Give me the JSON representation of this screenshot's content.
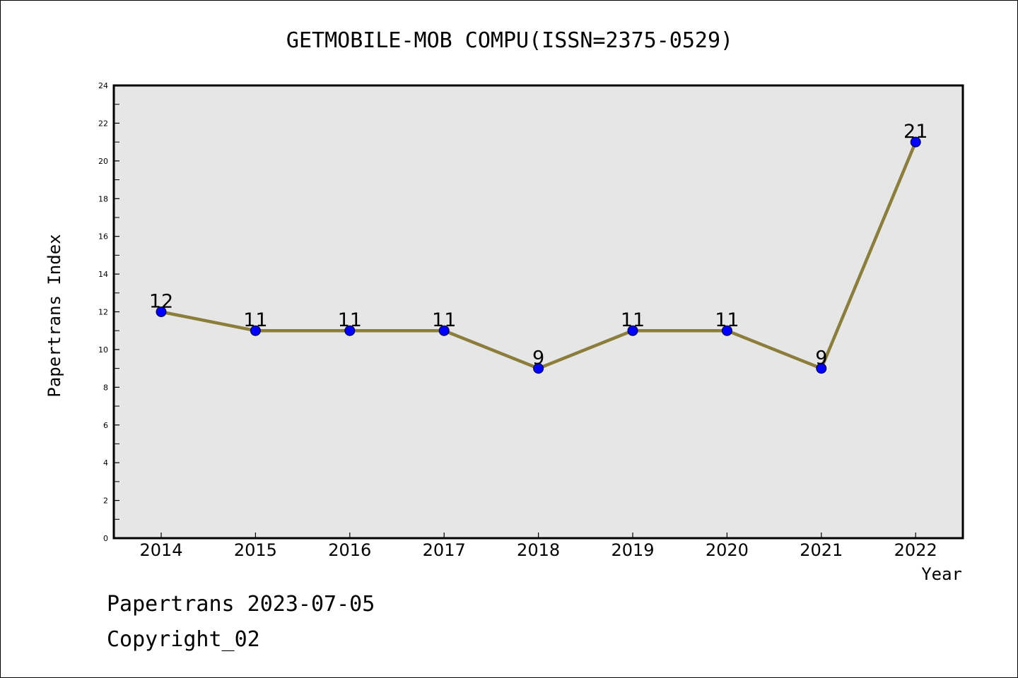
{
  "chart_data": {
    "type": "line",
    "title": "GETMOBILE-MOB COMPU(ISSN=2375-0529)",
    "xlabel": "Year",
    "ylabel": "Papertrans Index",
    "categories": [
      "2014",
      "2015",
      "2016",
      "2017",
      "2018",
      "2019",
      "2020",
      "2021",
      "2022"
    ],
    "values": [
      12,
      11,
      11,
      11,
      9,
      11,
      11,
      9,
      21
    ],
    "data_labels": [
      "12",
      "11",
      "11",
      "11",
      "9",
      "11",
      "11",
      "9",
      "21"
    ],
    "ylim": [
      0,
      24
    ],
    "yticks": [
      "0",
      "2",
      "4",
      "6",
      "8",
      "10",
      "12",
      "14",
      "16",
      "18",
      "20",
      "22",
      "24"
    ],
    "grid": false,
    "legend": "none",
    "colors": {
      "line": "#8B7D3A",
      "marker": "#0000FF",
      "plot_background": "#E6E6E6",
      "frame": "#000000"
    }
  },
  "footer": {
    "line1": "Papertrans 2023-07-05",
    "line2": "Copyright_02"
  }
}
